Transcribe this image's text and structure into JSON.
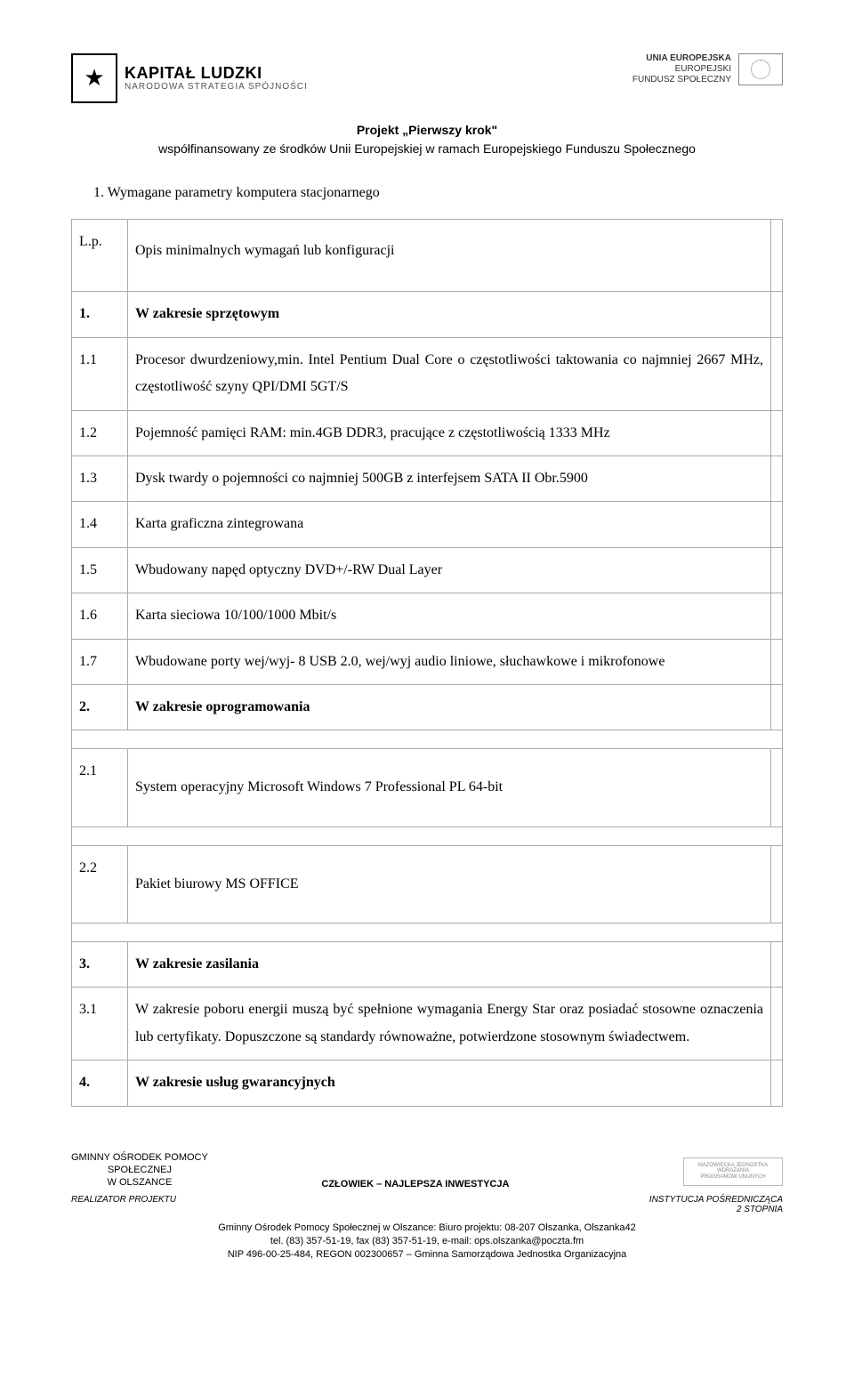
{
  "header": {
    "left_logo_title": "KAPITAŁ LUDZKI",
    "left_logo_sub": "NARODOWA STRATEGIA SPÓJNOŚCI",
    "right_line1": "UNIA EUROPEJSKA",
    "right_line2": "EUROPEJSKI",
    "right_line3": "FUNDUSZ SPOŁECZNY"
  },
  "project": {
    "name": "Projekt „Pierwszy krok\"",
    "cofinance": "współfinansowany ze środków Unii Europejskiej w ramach Europejskiego Funduszu Społecznego"
  },
  "section_heading": "1.  Wymagane parametry komputera stacjonarnego",
  "table": {
    "header_lp": "L.p.",
    "header_desc": "Opis minimalnych wymagań lub konfiguracji",
    "rows": [
      {
        "num": "1.",
        "desc": "W zakresie sprzętowym",
        "bold": true
      },
      {
        "num": "1.1",
        "desc": "Procesor  dwurdzeniowy,min. Intel Pentium Dual Core o częstotliwości taktowania co najmniej 2667 MHz, częstotliwość szyny  QPI/DMI 5GT/S",
        "bold": false
      },
      {
        "num": "1.2",
        "desc": "Pojemność pamięci RAM: min.4GB DDR3, pracujące z częstotliwością 1333 MHz",
        "bold": false
      },
      {
        "num": "1.3",
        "desc": "Dysk twardy o pojemności co najmniej 500GB z interfejsem SATA II Obr.5900",
        "bold": false
      },
      {
        "num": "1.4",
        "desc": "Karta graficzna zintegrowana",
        "bold": false
      },
      {
        "num": "1.5",
        "desc": "Wbudowany napęd optyczny DVD+/-RW Dual Layer",
        "bold": false
      },
      {
        "num": "1.6",
        "desc": "Karta sieciowa 10/100/1000 Mbit/s",
        "bold": false
      },
      {
        "num": "1.7",
        "desc": "Wbudowane porty wej/wyj- 8 USB 2.0, wej/wyj audio liniowe, słuchawkowe i mikrofonowe",
        "bold": false
      },
      {
        "num": "2.",
        "desc": "W zakresie oprogramowania",
        "bold": true
      },
      {
        "num": "2.1",
        "desc": "System operacyjny Microsoft Windows 7 Professional PL 64-bit",
        "bold": false,
        "tall": true
      },
      {
        "num": "2.2",
        "desc": "Pakiet biurowy MS OFFICE",
        "bold": false,
        "tall": true
      },
      {
        "num": "3.",
        "desc": "W zakresie zasilania",
        "bold": true
      },
      {
        "num": "3.1",
        "desc": "W zakresie poboru energii muszą być spełnione wymagania Energy Star oraz posiadać stosowne oznaczenia lub certyfikaty. Dopuszczone są standardy równoważne, potwierdzone stosownym świadectwem.",
        "bold": false
      },
      {
        "num": "4.",
        "desc": "W zakresie usług gwarancyjnych",
        "bold": true
      }
    ]
  },
  "footer": {
    "left_line1": "GMINNY OŚRODEK POMOCY",
    "left_line2": "SPOŁECZNEJ",
    "left_line3": "W OLSZANCE",
    "center": "CZŁOWIEK – NAJLEPSZA INWESTYCJA",
    "right_logo_l1": "MAZOWIECKA JEDNOSTKA",
    "right_logo_l2": "WDRAŻANIA",
    "right_logo_l3": "PROGRAMÓW UNIJNYCH",
    "bottom_left": "REALIZATOR PROJEKTU",
    "bottom_right_l1": "INSTYTUCJA POŚREDNICZĄCA",
    "bottom_right_l2": "2 STOPNIA",
    "contact_l1": "Gminny Ośrodek Pomocy Społecznej w Olszance: Biuro projektu: 08-207 Olszanka, Olszanka42",
    "contact_l2": "tel. (83) 357-51-19, fax (83) 357-51-19, e-mail: ops.olszanka@poczta.fm",
    "contact_l3": "NIP 496-00-25-484,  REGON 002300657 – Gminna Samorządowa Jednostka Organizacyjna"
  }
}
